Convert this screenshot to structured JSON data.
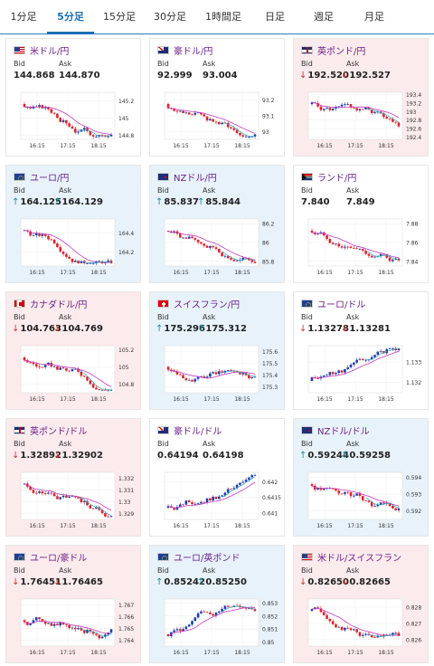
{
  "tabs": [
    "1分足",
    "5分足",
    "15分足",
    "30分足",
    "1時間足",
    "日足",
    "週足",
    "月足"
  ],
  "active_tab": 1,
  "labels": {
    "bid": "Bid",
    "ask": "Ask"
  },
  "x_ticks": [
    "16:15",
    "17:15",
    "18:15"
  ],
  "colors": {
    "up": "#1f3fa8",
    "down": "#e0202a",
    "ma1": "#c338c0",
    "ma2": "#2aa3b5",
    "title": "#6b1f8a",
    "arrow_up": "#1a8a9a",
    "arrow_down": "#c33"
  },
  "cards": [
    {
      "title": "米ドル/円",
      "flag": "us",
      "bg": "white",
      "bid": "144.868",
      "ask": "144.870",
      "arrow": "",
      "trend": "down",
      "yticks": [
        "145.2",
        "145",
        "144.8"
      ],
      "ylim": [
        144.75,
        145.3
      ]
    },
    {
      "title": "豪ドル/円",
      "flag": "au",
      "bg": "white",
      "bid": "92.999",
      "ask": "93.004",
      "arrow": "",
      "trend": "down",
      "yticks": [
        "93.2",
        "93.1",
        "93"
      ],
      "ylim": [
        92.95,
        93.25
      ]
    },
    {
      "title": "英ポンド/円",
      "flag": "gb",
      "bg": "red",
      "bid": "192.520",
      "ask": "192.527",
      "arrow": "down",
      "trend": "down",
      "yticks": [
        "193.4",
        "193.2",
        "193",
        "192.8",
        "192.6",
        "192.4"
      ],
      "ylim": [
        192.35,
        193.45
      ]
    },
    {
      "title": "ユーロ/円",
      "flag": "eu",
      "bg": "blue",
      "bid": "164.125",
      "ask": "164.129",
      "arrow": "up",
      "trend": "down",
      "yticks": [
        "164.4",
        "164.2"
      ],
      "ylim": [
        164.05,
        164.55
      ]
    },
    {
      "title": "NZドル/円",
      "flag": "nz",
      "bg": "blue",
      "bid": "85.837",
      "ask": "85.844",
      "arrow": "up",
      "trend": "down",
      "yticks": [
        "86.2",
        "86",
        "85.8"
      ],
      "ylim": [
        85.75,
        86.25
      ]
    },
    {
      "title": "ランド/円",
      "flag": "za",
      "bg": "white",
      "bid": "7.840",
      "ask": "7.849",
      "arrow": "",
      "trend": "down",
      "yticks": [
        "7.88",
        "7.86",
        "7.84"
      ],
      "ylim": [
        7.835,
        7.885
      ]
    },
    {
      "title": "カナダドル/円",
      "flag": "ca",
      "bg": "red",
      "bid": "104.763",
      "ask": "104.769",
      "arrow": "down",
      "trend": "down",
      "yticks": [
        "105.2",
        "105",
        "104.8"
      ],
      "ylim": [
        104.7,
        105.25
      ]
    },
    {
      "title": "スイスフラン/円",
      "flag": "ch",
      "bg": "blue",
      "bid": "175.296",
      "ask": "175.312",
      "arrow": "up",
      "trend": "flat",
      "yticks": [
        "175.6",
        "175.5",
        "175.4",
        "175.3"
      ],
      "ylim": [
        175.25,
        175.65
      ]
    },
    {
      "title": "ユーロ/ドル",
      "flag": "eu",
      "bg": "white",
      "bid": "1.13278",
      "ask": "1.13281",
      "arrow": "down",
      "trend": "up",
      "yticks": [
        "1.133",
        "1.132"
      ],
      "ylim": [
        1.1315,
        1.1338
      ]
    },
    {
      "title": "英ポンド/ドル",
      "flag": "gb",
      "bg": "red",
      "bid": "1.32892",
      "ask": "1.32902",
      "arrow": "down",
      "trend": "down",
      "yticks": [
        "1.332",
        "1.331",
        "1.33",
        "1.329"
      ],
      "ylim": [
        1.3285,
        1.3325
      ]
    },
    {
      "title": "豪ドル/ドル",
      "flag": "au",
      "bg": "white",
      "bid": "0.64194",
      "ask": "0.64198",
      "arrow": "",
      "trend": "up",
      "yticks": [
        "0.642",
        "0.6415",
        "0.641"
      ],
      "ylim": [
        0.6408,
        0.6423
      ]
    },
    {
      "title": "NZドル/ドル",
      "flag": "nz",
      "bg": "blue",
      "bid": "0.59244",
      "ask": "0.59258",
      "arrow": "up",
      "trend": "down",
      "yticks": [
        "0.594",
        "0.593",
        "0.592"
      ],
      "ylim": [
        0.5915,
        0.5943
      ]
    },
    {
      "title": "ユーロ/豪ドル",
      "flag": "eu",
      "bg": "red",
      "bid": "1.76451",
      "ask": "1.76465",
      "arrow": "down",
      "trend": "flat",
      "yticks": [
        "1.767",
        "1.766",
        "1.765",
        "1.764"
      ],
      "ylim": [
        1.7635,
        1.7675
      ]
    },
    {
      "title": "ユーロ/英ポンド",
      "flag": "eu",
      "bg": "blue",
      "bid": "0.85242",
      "ask": "0.85250",
      "arrow": "up",
      "trend": "up",
      "yticks": [
        "0.853",
        "0.852",
        "0.851",
        "0.85"
      ],
      "ylim": [
        0.8497,
        0.8533
      ]
    },
    {
      "title": "米ドル/スイスフラン",
      "flag": "us",
      "bg": "red",
      "bid": "0.82650",
      "ask": "0.82665",
      "arrow": "down",
      "trend": "down",
      "yticks": [
        "0.828",
        "0.827",
        "0.826"
      ],
      "ylim": [
        0.8256,
        0.8285
      ]
    }
  ]
}
